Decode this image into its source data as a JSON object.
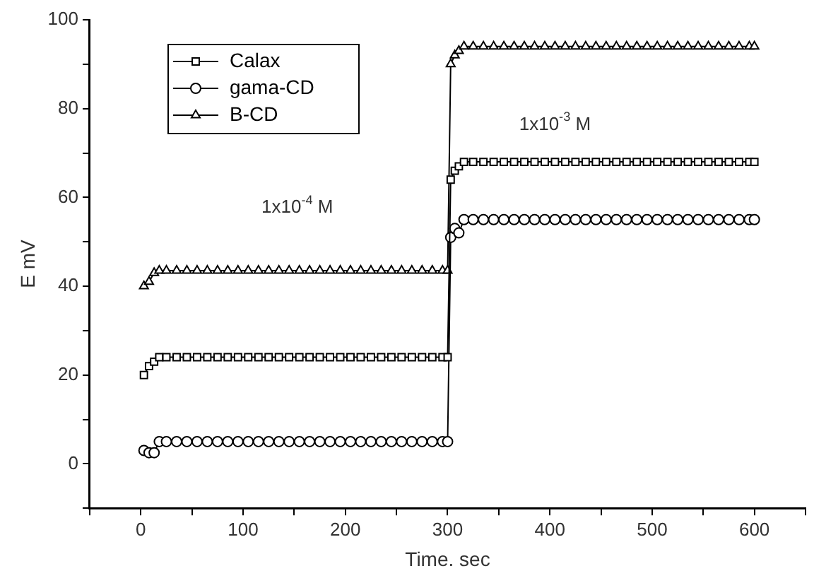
{
  "chart_data": {
    "type": "line",
    "xlabel": "Time. sec",
    "ylabel": "E mV",
    "x": [
      3,
      8,
      13,
      18,
      25,
      35,
      45,
      55,
      65,
      75,
      85,
      95,
      105,
      115,
      125,
      135,
      145,
      155,
      165,
      175,
      185,
      195,
      205,
      215,
      225,
      235,
      245,
      255,
      265,
      275,
      285,
      295,
      300,
      303,
      307,
      311,
      316,
      325,
      335,
      345,
      355,
      365,
      375,
      385,
      395,
      405,
      415,
      425,
      435,
      445,
      455,
      465,
      475,
      485,
      495,
      505,
      515,
      525,
      535,
      545,
      555,
      565,
      575,
      585,
      595,
      600
    ],
    "series": [
      {
        "name": "Calax",
        "color": "#000000",
        "marker": "square",
        "values": [
          20,
          22,
          23,
          24,
          24,
          24,
          24,
          24,
          24,
          24,
          24,
          24,
          24,
          24,
          24,
          24,
          24,
          24,
          24,
          24,
          24,
          24,
          24,
          24,
          24,
          24,
          24,
          24,
          24,
          24,
          24,
          24,
          24,
          64,
          66,
          67,
          68,
          68,
          68,
          68,
          68,
          68,
          68,
          68,
          68,
          68,
          68,
          68,
          68,
          68,
          68,
          68,
          68,
          68,
          68,
          68,
          68,
          68,
          68,
          68,
          68,
          68,
          68,
          68,
          68,
          68
        ]
      },
      {
        "name": "gama-CD",
        "color": "#000000",
        "marker": "circle",
        "values": [
          3,
          2.5,
          2.5,
          5,
          5,
          5,
          5,
          5,
          5,
          5,
          5,
          5,
          5,
          5,
          5,
          5,
          5,
          5,
          5,
          5,
          5,
          5,
          5,
          5,
          5,
          5,
          5,
          5,
          5,
          5,
          5,
          5,
          5,
          51,
          53,
          52,
          55,
          55,
          55,
          55,
          55,
          55,
          55,
          55,
          55,
          55,
          55,
          55,
          55,
          55,
          55,
          55,
          55,
          55,
          55,
          55,
          55,
          55,
          55,
          55,
          55,
          55,
          55,
          55,
          55,
          55
        ]
      },
      {
        "name": "B-CD",
        "color": "#000000",
        "marker": "triangle",
        "values": [
          40,
          41,
          43,
          43.5,
          43.5,
          43.5,
          43.5,
          43.5,
          43.5,
          43.5,
          43.5,
          43.5,
          43.5,
          43.5,
          43.5,
          43.5,
          43.5,
          43.5,
          43.5,
          43.5,
          43.5,
          43.5,
          43.5,
          43.5,
          43.5,
          43.5,
          43.5,
          43.5,
          43.5,
          43.5,
          43.5,
          43.5,
          43.5,
          90,
          92,
          93,
          94,
          94,
          94,
          94,
          94,
          94,
          94,
          94,
          94,
          94,
          94,
          94,
          94,
          94,
          94,
          94,
          94,
          94,
          94,
          94,
          94,
          94,
          94,
          94,
          94,
          94,
          94,
          94,
          94,
          94
        ]
      }
    ],
    "xlim": [
      -50,
      650
    ],
    "xticks": [
      {
        "value": -50,
        "label": null
      },
      0,
      {
        "value": 50,
        "label": null
      },
      100,
      {
        "value": 150,
        "label": null
      },
      200,
      {
        "value": 250,
        "label": null
      },
      300,
      {
        "value": 350,
        "label": null
      },
      400,
      {
        "value": 450,
        "label": null
      },
      500,
      {
        "value": 550,
        "label": null
      },
      600,
      {
        "value": 650,
        "label": null
      }
    ],
    "ylim": [
      -10,
      100
    ],
    "yticks": [
      {
        "value": -10,
        "label": null
      },
      0,
      {
        "value": 10,
        "label": null
      },
      20,
      {
        "value": 30,
        "label": null
      },
      40,
      {
        "value": 50,
        "label": null
      },
      60,
      {
        "value": 70,
        "label": null
      },
      80,
      {
        "value": 90,
        "label": null
      },
      100
    ],
    "annotations": [
      "1x10$^{-4}$ M",
      "1x10$^{-3}$ M"
    ],
    "legend": "top left",
    "grid": false,
    "line_style": "solid"
  }
}
